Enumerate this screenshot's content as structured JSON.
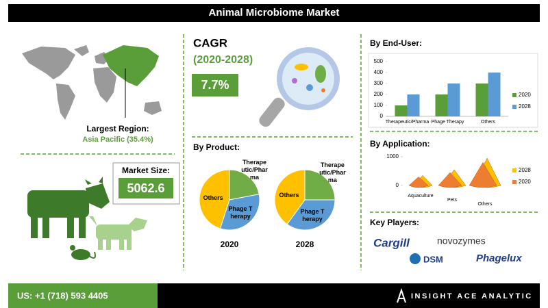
{
  "header": {
    "title": "Animal Microbiome Market"
  },
  "region": {
    "label": "Largest Region:",
    "value": "Asia Pacific (35.4%)"
  },
  "market_size": {
    "label": "Market Size:",
    "value": 5062.6
  },
  "cagr": {
    "label": "CAGR",
    "period": "(2020-2028)",
    "value": "7.7%"
  },
  "by_product": {
    "title": "By Product:",
    "charts": [
      {
        "type": "pie",
        "year": "2020",
        "categories": [
          "Therapeutic/Pharma",
          "Phage Therapy",
          "Others"
        ],
        "values": [
          22,
          33,
          45
        ],
        "colors": [
          "#70ad47",
          "#5b9bd5",
          "#ffc000"
        ]
      },
      {
        "type": "pie",
        "year": "2028",
        "categories": [
          "Therapeutic/Pharma",
          "Phage Therapy",
          "Others"
        ],
        "values": [
          25,
          35,
          40
        ],
        "colors": [
          "#70ad47",
          "#5b9bd5",
          "#ffc000"
        ]
      }
    ]
  },
  "by_end_user": {
    "title": "By End-User:",
    "type": "bar",
    "categories": [
      "Therapeutic/Pharma",
      "Phage Therapy",
      "Others"
    ],
    "series": [
      {
        "name": "2020",
        "color": "#5a9e3a",
        "values": [
          100,
          200,
          300
        ]
      },
      {
        "name": "2028",
        "color": "#5b9bd5",
        "values": [
          200,
          300,
          400
        ]
      }
    ],
    "ylim": [
      0,
      500
    ],
    "yticks": [
      0,
      100,
      200,
      300,
      400,
      500
    ]
  },
  "by_application": {
    "title": "By Application:",
    "type": "cone",
    "categories": [
      "Aquaculture",
      "Pets",
      "Others"
    ],
    "series": [
      {
        "name": "2028",
        "color": "#ffc000",
        "values": [
          350,
          550,
          950
        ]
      },
      {
        "name": "2020",
        "color": "#ed7d31",
        "values": [
          300,
          450,
          800
        ]
      }
    ],
    "ylim": [
      0,
      1000
    ],
    "yticks": [
      0,
      1000
    ]
  },
  "key_players": {
    "title": "Key Players:",
    "names": [
      "Cargill",
      "novozymes",
      "DSM",
      "Phagelux"
    ]
  },
  "footer": {
    "phone": "US: +1 (718) 593 4405",
    "brand": "INSIGHT ACE ANALYTIC"
  }
}
